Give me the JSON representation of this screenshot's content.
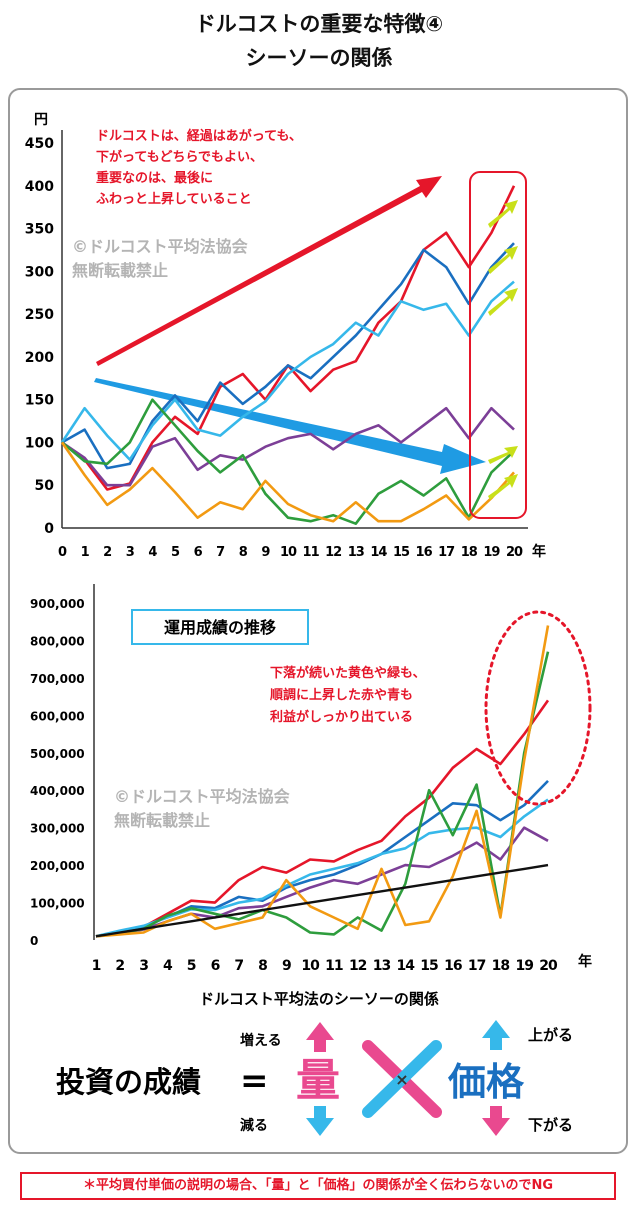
{
  "header": {
    "title_line1": "ドルコストの重要な特徴④",
    "title_line2": "シーソーの関係"
  },
  "chart_data": [
    {
      "type": "line",
      "y_unit": "円",
      "x_unit": "年",
      "ylim": [
        0,
        450
      ],
      "y_ticks": [
        0,
        50,
        100,
        150,
        200,
        250,
        300,
        350,
        400,
        450
      ],
      "x": [
        0,
        1,
        2,
        3,
        4,
        5,
        6,
        7,
        8,
        9,
        10,
        11,
        12,
        13,
        14,
        15,
        16,
        17,
        18,
        19,
        20
      ],
      "annotation": [
        "ドルコストは、経過はあがっても、",
        "下がってもどちらでもよい、",
        "重要なのは、最後に",
        "ふわっと上昇していること"
      ],
      "watermark": [
        "©ドルコスト平均法協会",
        "無断転載禁止"
      ],
      "colors": {
        "red": "#e5162a",
        "blue": "#1a6fc0",
        "lightblue": "#36b8ea",
        "purple": "#7c3f97",
        "green": "#2e9d3d",
        "orange": "#f29a12",
        "arrow_yellow": "#c9e01a"
      },
      "series": [
        {
          "color": "red",
          "values": [
            100,
            80,
            45,
            52,
            100,
            130,
            110,
            165,
            180,
            150,
            190,
            160,
            185,
            195,
            240,
            265,
            325,
            345,
            305,
            345,
            400
          ]
        },
        {
          "color": "blue",
          "values": [
            100,
            115,
            70,
            75,
            125,
            155,
            125,
            170,
            145,
            165,
            190,
            175,
            200,
            225,
            255,
            285,
            325,
            305,
            262,
            305,
            333
          ]
        },
        {
          "color": "lightblue",
          "values": [
            100,
            140,
            108,
            80,
            120,
            150,
            115,
            108,
            130,
            148,
            180,
            200,
            215,
            240,
            225,
            265,
            255,
            262,
            225,
            265,
            288
          ]
        },
        {
          "color": "purple",
          "values": [
            100,
            82,
            50,
            50,
            95,
            105,
            68,
            85,
            80,
            95,
            105,
            110,
            92,
            110,
            120,
            100,
            120,
            140,
            105,
            140,
            115
          ]
        },
        {
          "color": "green",
          "values": [
            100,
            78,
            75,
            100,
            150,
            120,
            90,
            65,
            85,
            40,
            12,
            8,
            15,
            5,
            40,
            55,
            38,
            58,
            12,
            65,
            90
          ]
        },
        {
          "color": "orange",
          "values": [
            100,
            62,
            27,
            45,
            70,
            42,
            12,
            30,
            22,
            55,
            28,
            15,
            8,
            30,
            8,
            8,
            22,
            38,
            10,
            35,
            65
          ]
        }
      ]
    },
    {
      "type": "line",
      "title": "運用成績の推移",
      "x_unit": "年",
      "ylim": [
        0,
        900000
      ],
      "y_ticks": [
        "0",
        "100,000",
        "200,000",
        "300,000",
        "400,000",
        "500,000",
        "600,000",
        "700,000",
        "800,000",
        "900,000"
      ],
      "x": [
        1,
        2,
        3,
        4,
        5,
        6,
        7,
        8,
        9,
        10,
        11,
        12,
        13,
        14,
        15,
        16,
        17,
        18,
        19,
        20
      ],
      "annotation": [
        "下落が続いた黄色や緑も、",
        "順調に上昇した赤や青も",
        "利益がしっかり出ている"
      ],
      "watermark": [
        "©ドルコスト平均法協会",
        "無断転載禁止"
      ],
      "series": [
        {
          "color": "red",
          "values": [
            10000,
            20000,
            35000,
            70000,
            105000,
            100000,
            160000,
            195000,
            180000,
            215000,
            210000,
            240000,
            265000,
            330000,
            380000,
            460000,
            510000,
            470000,
            550000,
            640000
          ]
        },
        {
          "color": "blue",
          "values": [
            10000,
            22000,
            35000,
            62000,
            90000,
            85000,
            115000,
            105000,
            140000,
            160000,
            175000,
            200000,
            230000,
            275000,
            320000,
            365000,
            360000,
            320000,
            360000,
            425000
          ]
        },
        {
          "color": "lightblue",
          "values": [
            10000,
            25000,
            38000,
            60000,
            82000,
            80000,
            100000,
            110000,
            145000,
            175000,
            190000,
            205000,
            230000,
            245000,
            285000,
            295000,
            300000,
            275000,
            330000,
            375000
          ]
        },
        {
          "color": "purple",
          "values": [
            10000,
            18000,
            28000,
            50000,
            70000,
            60000,
            85000,
            90000,
            115000,
            140000,
            160000,
            150000,
            175000,
            200000,
            195000,
            225000,
            260000,
            215000,
            300000,
            265000
          ]
        },
        {
          "color": "green",
          "values": [
            10000,
            18000,
            30000,
            65000,
            85000,
            70000,
            55000,
            80000,
            60000,
            20000,
            15000,
            60000,
            25000,
            150000,
            400000,
            280000,
            415000,
            65000,
            500000,
            770000
          ]
        },
        {
          "color": "orange",
          "values": [
            10000,
            15000,
            20000,
            50000,
            70000,
            30000,
            45000,
            60000,
            160000,
            90000,
            60000,
            30000,
            190000,
            40000,
            50000,
            170000,
            345000,
            60000,
            480000,
            840000
          ]
        },
        {
          "color": "black",
          "values": [
            10000,
            20000,
            30000,
            40000,
            50000,
            60000,
            70000,
            80000,
            90000,
            100000,
            110000,
            120000,
            130000,
            140000,
            150000,
            160000,
            170000,
            180000,
            190000,
            200000
          ]
        }
      ]
    }
  ],
  "seesaw": {
    "title": "ドルコスト平均法のシーソーの関係",
    "left_label": "投資の成績",
    "equals": "=",
    "quantity": "量",
    "times": "×",
    "price": "価格",
    "increase": "増える",
    "decrease": "減る",
    "rise": "上がる",
    "fall": "下がる",
    "pink": "#e9498f",
    "cyan": "#36b8ea"
  },
  "footer_note": "＊平均買付単価の説明の場合、「量」と「価格」の関係が全く伝わらないのでNG"
}
